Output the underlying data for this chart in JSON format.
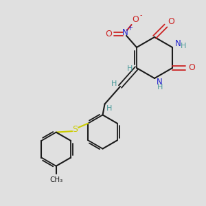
{
  "bg_color": "#e0e0e0",
  "bond_color": "#1a1a1a",
  "nitrogen_color": "#2222cc",
  "oxygen_color": "#cc2222",
  "sulfur_color": "#cccc00",
  "hydrogen_color": "#4a9a9a",
  "figsize": [
    3.0,
    3.0
  ],
  "dpi": 100,
  "xlim": [
    0,
    10
  ],
  "ylim": [
    0,
    10
  ]
}
